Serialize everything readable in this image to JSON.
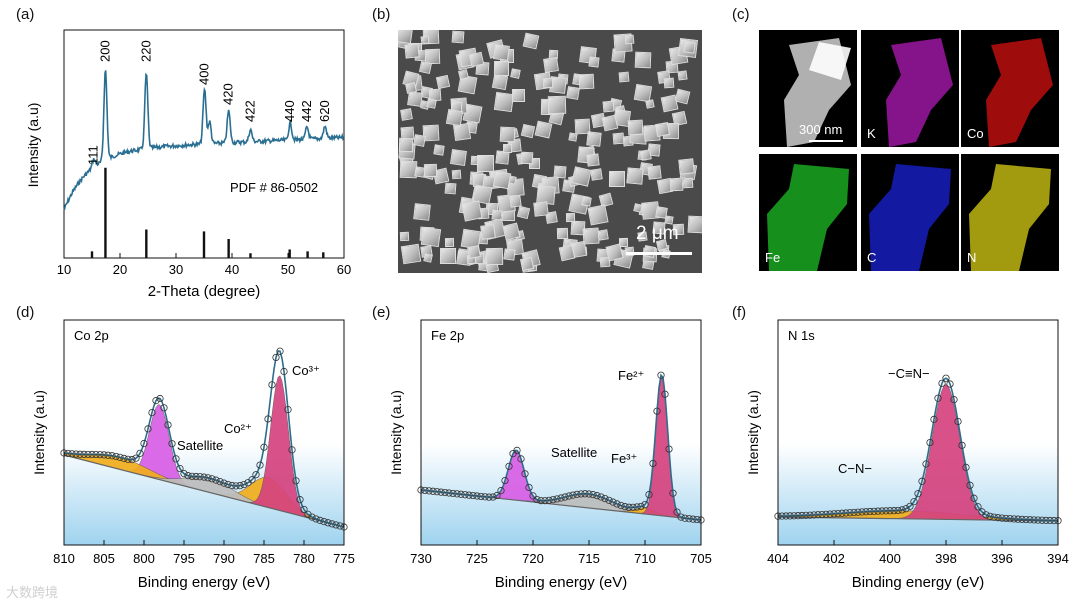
{
  "panels": {
    "a": "(a)",
    "b": "(b)",
    "c": "(c)",
    "d": "(d)",
    "e": "(e)",
    "f": "(f)"
  },
  "xrd": {
    "ylabel": "Intensity (a.u)",
    "xlabel": "2-Theta (degree)",
    "xticks": [
      "10",
      "20",
      "30",
      "40",
      "50",
      "60"
    ],
    "pdf": "PDF # 86-0502",
    "peak_labels": [
      {
        "label": "111",
        "x": 15.3
      },
      {
        "label": "200",
        "x": 17.4
      },
      {
        "label": "220",
        "x": 24.7
      },
      {
        "label": "400",
        "x": 35.1
      },
      {
        "label": "420",
        "x": 39.4
      },
      {
        "label": "422",
        "x": 43.3
      },
      {
        "label": "440",
        "x": 50.4
      },
      {
        "label": "442",
        "x": 53.4
      },
      {
        "label": "620",
        "x": 56.6
      }
    ],
    "ref_lines": [
      {
        "x": 15.0,
        "h": 0.07
      },
      {
        "x": 17.4,
        "h": 0.95
      },
      {
        "x": 24.7,
        "h": 0.3
      },
      {
        "x": 35.0,
        "h": 0.28
      },
      {
        "x": 39.4,
        "h": 0.2
      },
      {
        "x": 43.3,
        "h": 0.05
      },
      {
        "x": 50.3,
        "h": 0.09
      },
      {
        "x": 53.5,
        "h": 0.07
      },
      {
        "x": 56.3,
        "h": 0.06
      }
    ],
    "color": "#2a6f92"
  },
  "sem": {
    "scale": "2 μm"
  },
  "eds": {
    "scale": "300 nm",
    "maps": [
      {
        "label": "",
        "color": "#cfcfcf"
      },
      {
        "label": "K",
        "color": "#b21ab8"
      },
      {
        "label": "Co",
        "color": "#d41010"
      },
      {
        "label": "Fe",
        "color": "#1fbf25"
      },
      {
        "label": "C",
        "color": "#1a22d6"
      },
      {
        "label": "N",
        "color": "#d9cf14"
      }
    ]
  },
  "xps": [
    {
      "id": "co",
      "title": "Co 2p",
      "ylabel": "Intensity (a.u)",
      "xlabel": "Binding energy (eV)",
      "xticks": [
        "810",
        "805",
        "800",
        "795",
        "790",
        "785",
        "780",
        "775"
      ],
      "annotations": [
        "Co³⁺",
        "Co²⁺",
        "Satellite"
      ]
    },
    {
      "id": "fe",
      "title": "Fe 2p",
      "ylabel": "Intensity (a.u)",
      "xlabel": "Binding energy (eV)",
      "xticks": [
        "730",
        "725",
        "720",
        "715",
        "710",
        "705"
      ],
      "annotations": [
        "Fe²⁺",
        "Fe³⁺",
        "Satellite"
      ]
    },
    {
      "id": "n",
      "title": "N 1s",
      "ylabel": "Intensity (a.u)",
      "xlabel": "Binding energy (eV)",
      "xticks": [
        "404",
        "402",
        "400",
        "398",
        "396",
        "394"
      ],
      "annotations": [
        "−C≡N−",
        "C−N−"
      ]
    }
  ],
  "colors": {
    "pink": "#d6437f",
    "magenta": "#d85ee6",
    "orange": "#f2ae1c",
    "gray": "#bdbdbd",
    "fit": "#2f6d8c"
  },
  "watermark": "大数跨境"
}
